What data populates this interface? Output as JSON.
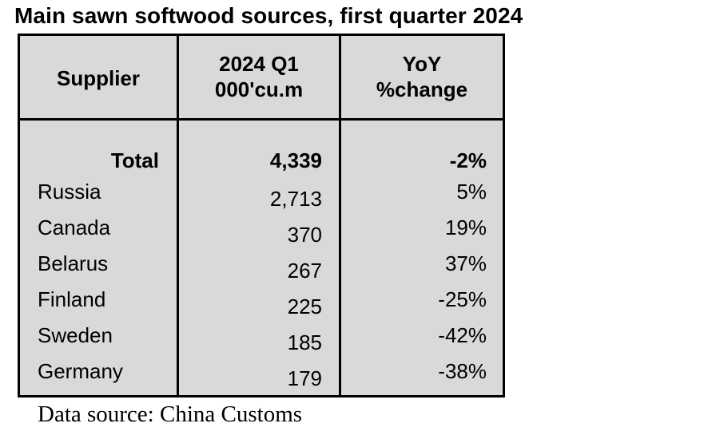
{
  "title": "Main sawn softwood sources, first quarter 2024",
  "headers": {
    "supplier": "Supplier",
    "volume_line1": "2024 Q1",
    "volume_line2": "000'cu.m",
    "yoy_line1": "YoY",
    "yoy_line2": "%change"
  },
  "total": {
    "label": "Total",
    "volume": "4,339",
    "yoy": "-2%"
  },
  "rows": [
    {
      "supplier": "Russia",
      "volume": "2,713",
      "yoy": "5%"
    },
    {
      "supplier": "Canada",
      "volume": "370",
      "yoy": "19%"
    },
    {
      "supplier": "Belarus",
      "volume": "267",
      "yoy": "37%"
    },
    {
      "supplier": "Finland",
      "volume": "225",
      "yoy": "-25%"
    },
    {
      "supplier": "Sweden",
      "volume": "185",
      "yoy": "-42%"
    },
    {
      "supplier": "Germany",
      "volume": "179",
      "yoy": "-38%"
    }
  ],
  "source": "Data source: China Customs"
}
